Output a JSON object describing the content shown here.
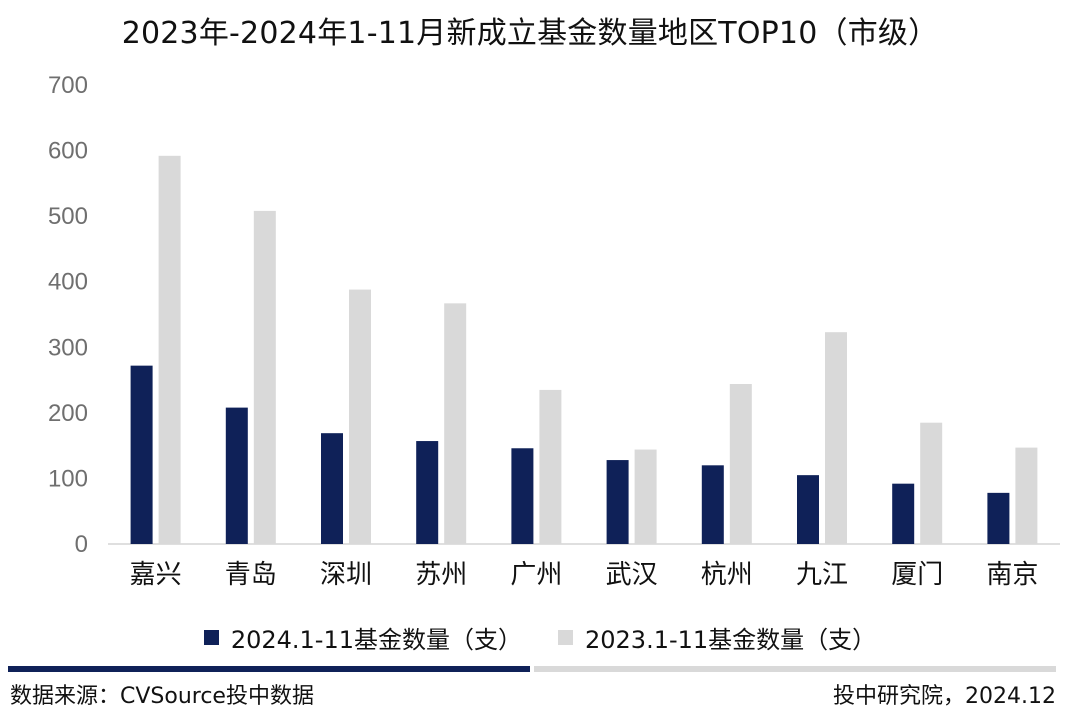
{
  "chart_data": {
    "type": "bar",
    "title": "2023年-2024年1-11月新成立基金数量地区TOP10（市级）",
    "categories": [
      "嘉兴",
      "青岛",
      "深圳",
      "苏州",
      "广州",
      "武汉",
      "杭州",
      "九江",
      "厦门",
      "南京"
    ],
    "series": [
      {
        "name": "2024.1-11基金数量（支）",
        "color": "#0f2158",
        "values": [
          272,
          208,
          169,
          157,
          146,
          128,
          120,
          105,
          92,
          78
        ]
      },
      {
        "name": "2023.1-11基金数量（支）",
        "color": "#d9d9d9",
        "values": [
          592,
          508,
          388,
          367,
          235,
          144,
          244,
          323,
          185,
          147
        ]
      }
    ],
    "ylim": [
      0,
      700
    ],
    "yticks": [
      "0",
      "100",
      "200",
      "300",
      "400",
      "500",
      "600",
      "700"
    ],
    "grid": false,
    "legend": "bottom"
  },
  "footer": {
    "source": "数据来源：CVSource投中数据",
    "credit": "投中研究院，2024.12",
    "divider_dark": "#0f2158",
    "divider_light": "#d9d9d9"
  }
}
